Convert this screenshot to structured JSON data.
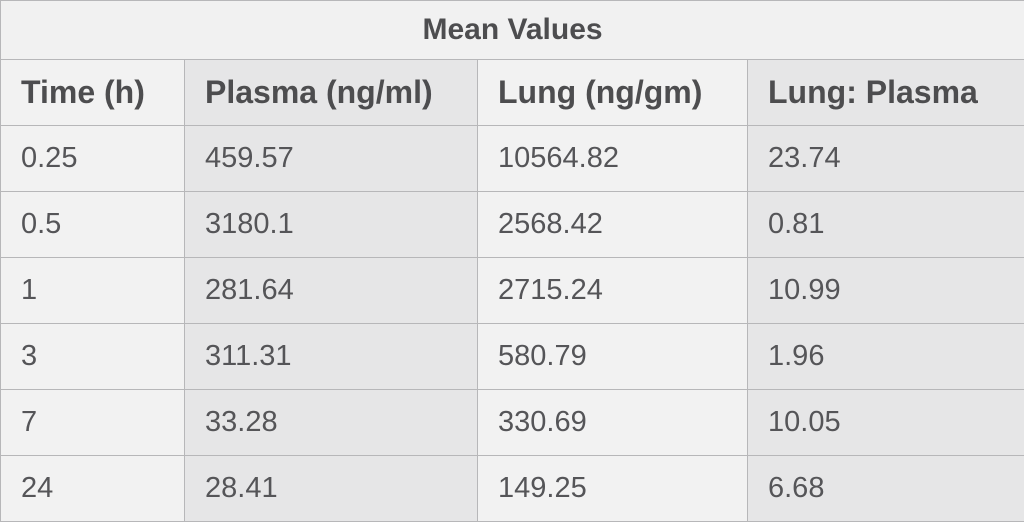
{
  "table": {
    "title": "Mean Values",
    "headers": [
      "Time (h)",
      "Plasma (ng/ml)",
      "Lung (ng/gm)",
      "Lung: Plasma"
    ],
    "rows": [
      [
        "0.25",
        "459.57",
        "10564.82",
        "23.74"
      ],
      [
        "0.5",
        "3180.1",
        "2568.42",
        "0.81"
      ],
      [
        "1",
        "281.64",
        "2715.24",
        "10.99"
      ],
      [
        "3",
        "311.31",
        "580.79",
        "1.96"
      ],
      [
        "7",
        "33.28",
        "330.69",
        "10.05"
      ],
      [
        "24",
        "28.41",
        "149.25",
        "6.68"
      ]
    ]
  }
}
